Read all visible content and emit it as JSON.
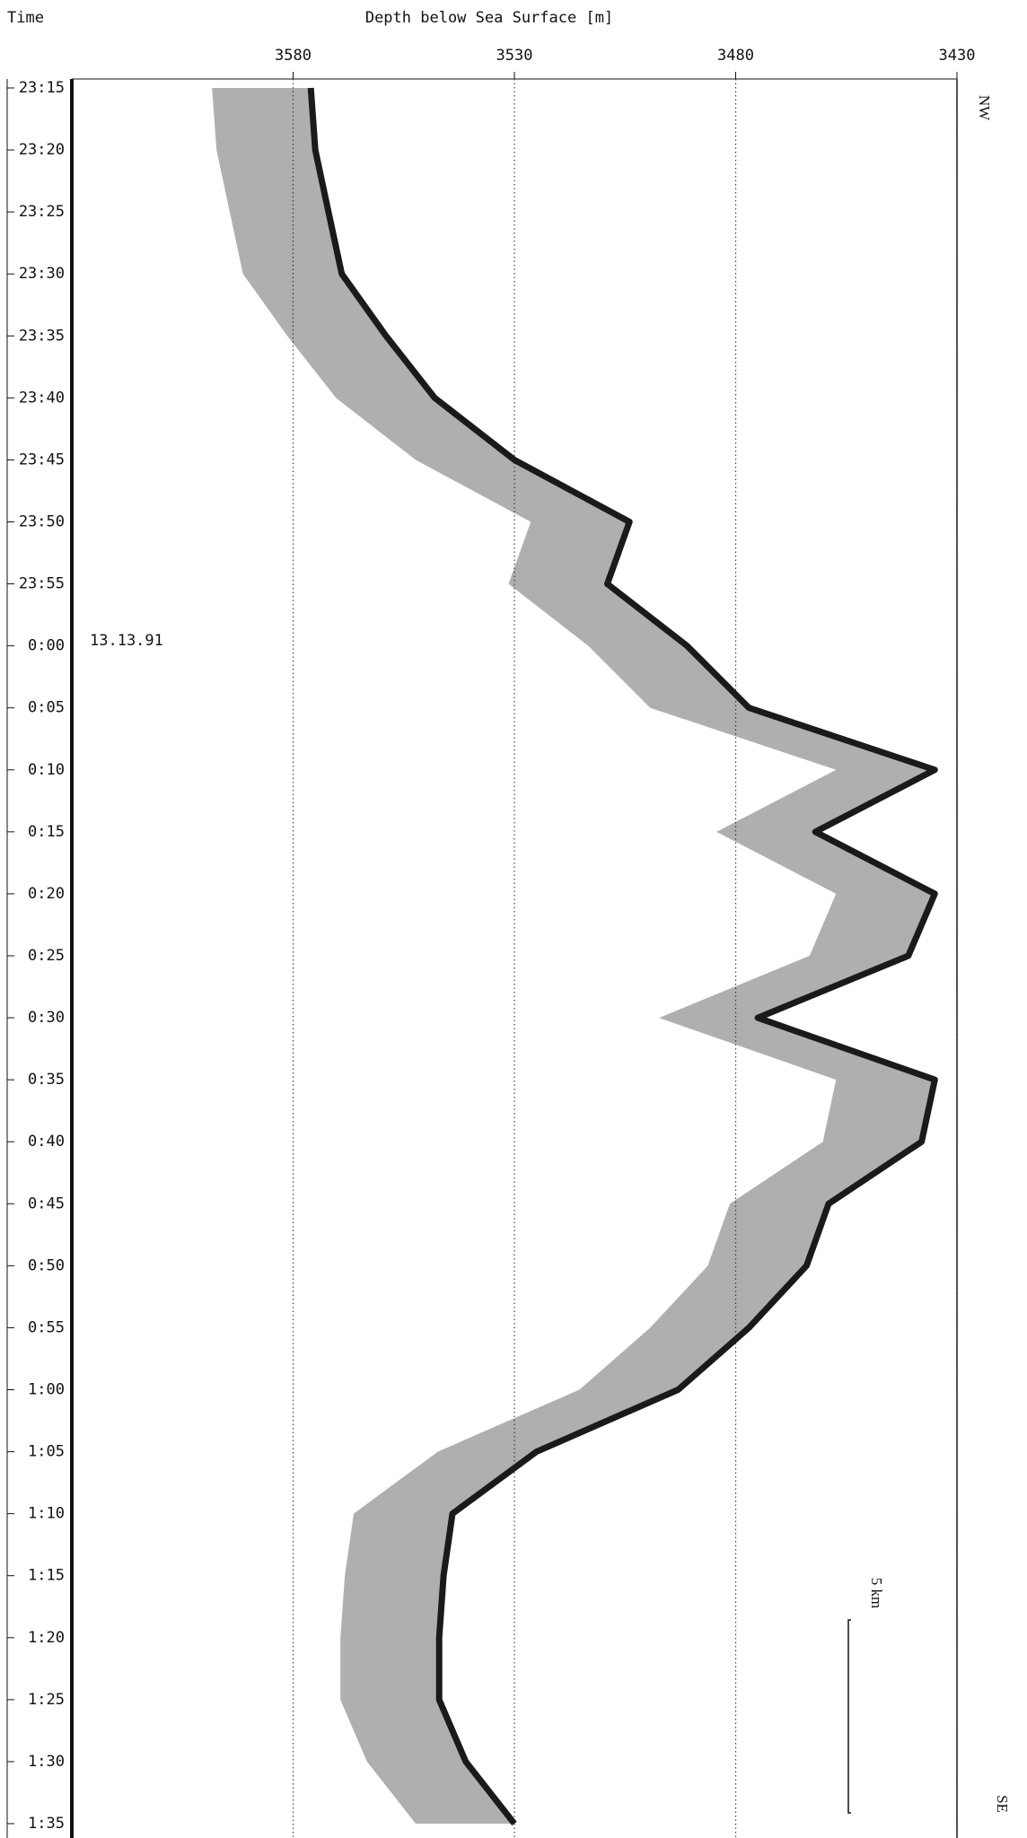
{
  "chart_data": {
    "type": "line",
    "title": "Depth below Sea Surface [m]",
    "y_label": "Time",
    "date_label": "13.13.91",
    "annotations": [
      "NW",
      "SE",
      "5 km"
    ],
    "categories": [
      "23:15",
      "23:20",
      "23:25",
      "23:30",
      "23:35",
      "23:40",
      "23:45",
      "23:50",
      "23:55",
      "0:00",
      "0:05",
      "0:10",
      "0:15",
      "0:20",
      "0:25",
      "0:30",
      "0:35",
      "0:40",
      "0:45",
      "0:50",
      "0:55",
      "1:00",
      "1:05",
      "1:10",
      "1:15",
      "1:20",
      "1:25",
      "1:30",
      "1:35"
    ],
    "values": [
      3576,
      3575,
      3572,
      3569,
      3559,
      3548,
      3530,
      3504,
      3509,
      3491,
      3477,
      3435,
      3462,
      3435,
      3441,
      3475,
      3435,
      3438,
      3459,
      3464,
      3477,
      3493,
      3525,
      3544,
      3546,
      3547,
      3547,
      3541,
      3530
    ],
    "color": "#1a1a1a",
    "xlim": [
      3630,
      3430
    ],
    "xticks": [
      3580,
      3530,
      3480,
      3430
    ],
    "grid": true
  }
}
